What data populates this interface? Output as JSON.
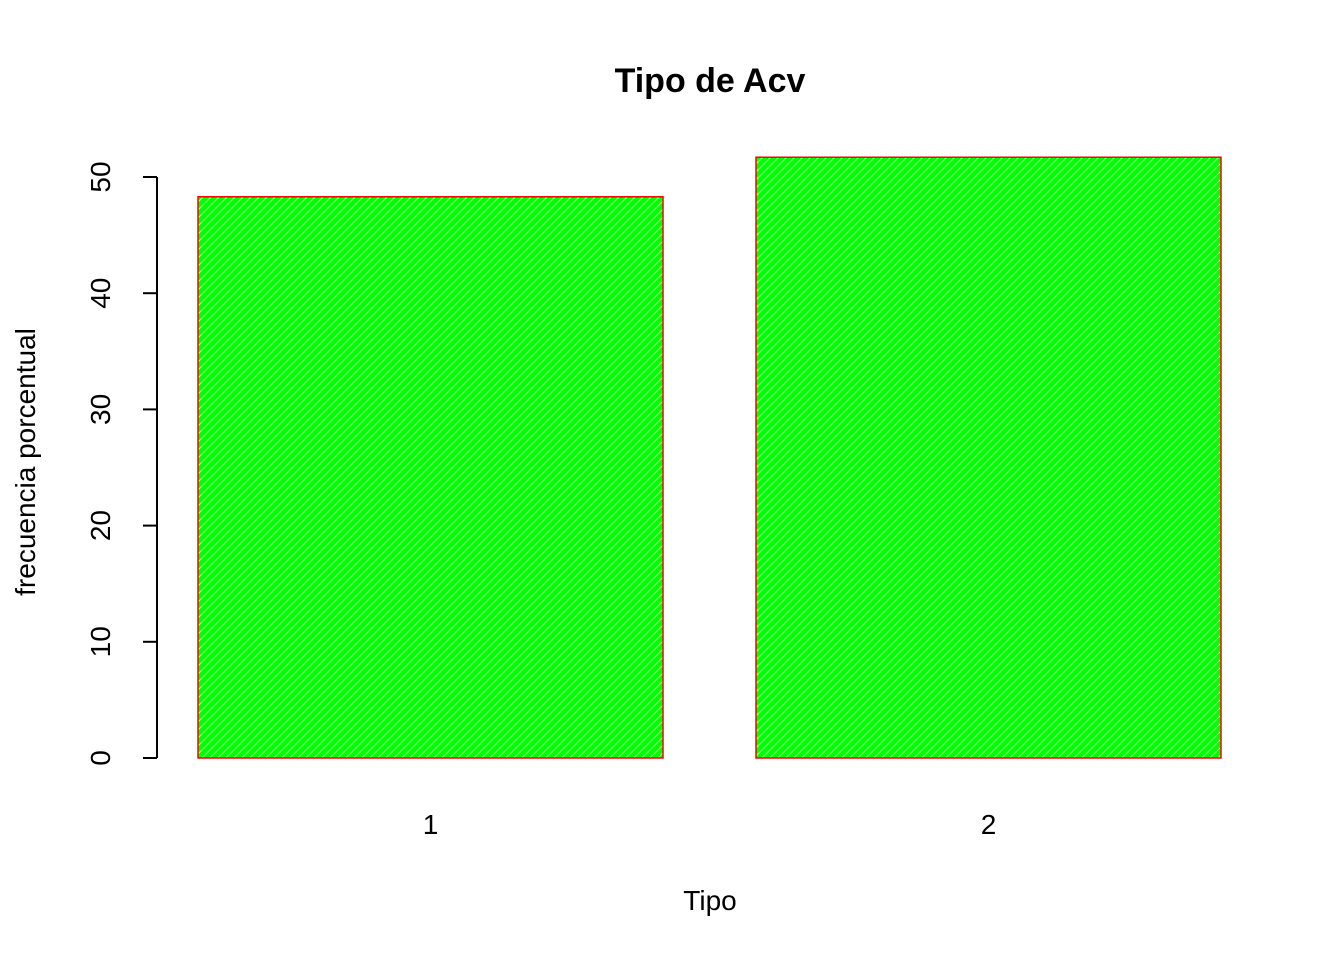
{
  "chart_data": {
    "type": "bar",
    "title": "Tipo de Acv",
    "xlabel": "Tipo",
    "ylabel": "frecuencia porcentual",
    "categories": [
      "1",
      "2"
    ],
    "values": [
      48.3,
      51.7
    ],
    "ylim": [
      0,
      50
    ],
    "yticks": [
      "0",
      "10",
      "20",
      "30",
      "40",
      "50"
    ],
    "grid": false,
    "legend": "none",
    "colors": {
      "fill": "#00ff00",
      "border": "#ff0000",
      "hatch": "#ffffff"
    }
  }
}
